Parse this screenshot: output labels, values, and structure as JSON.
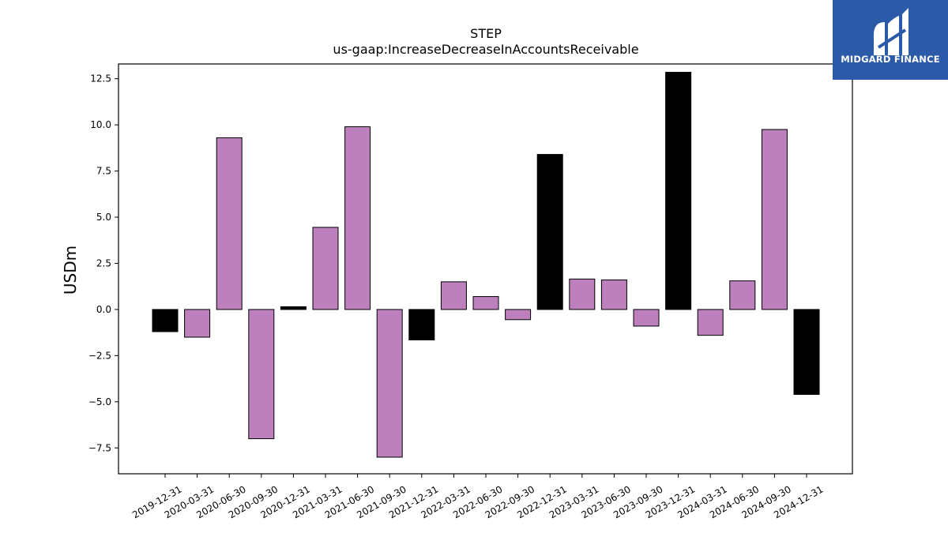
{
  "chart_data": {
    "type": "bar",
    "title": "STEP",
    "subtitle": "us-gaap:IncreaseDecreaseInAccountsReceivable",
    "xlabel": "",
    "ylabel": "USDm",
    "ylim": [
      -8.9,
      13.3
    ],
    "yticks": [
      -7.5,
      -5.0,
      -2.5,
      0.0,
      2.5,
      5.0,
      7.5,
      10.0,
      12.5
    ],
    "ytick_labels": [
      "−7.5",
      "−5.0",
      "−2.5",
      "0.0",
      "2.5",
      "5.0",
      "7.5",
      "10.0",
      "12.5"
    ],
    "grid": false,
    "categories": [
      "2019-12-31",
      "2020-03-31",
      "2020-06-30",
      "2020-09-30",
      "2020-12-31",
      "2021-03-31",
      "2021-06-30",
      "2021-09-30",
      "2021-12-31",
      "2022-03-31",
      "2022-06-30",
      "2022-09-30",
      "2022-12-31",
      "2023-03-31",
      "2023-06-30",
      "2023-09-30",
      "2023-12-31",
      "2024-03-31",
      "2024-06-30",
      "2024-09-30",
      "2024-12-31"
    ],
    "values": [
      -1.2,
      -1.5,
      9.3,
      -7.0,
      0.15,
      4.45,
      9.9,
      -8.0,
      -1.65,
      1.5,
      0.7,
      -0.55,
      8.4,
      1.65,
      1.6,
      -0.9,
      12.85,
      -1.4,
      1.55,
      9.75,
      -4.6
    ],
    "colors": {
      "quarter": "#bc80bd",
      "year_end": "#000000"
    }
  },
  "logo": {
    "name": "MIDGARD FINANCE",
    "background": "#2b5aa8"
  }
}
